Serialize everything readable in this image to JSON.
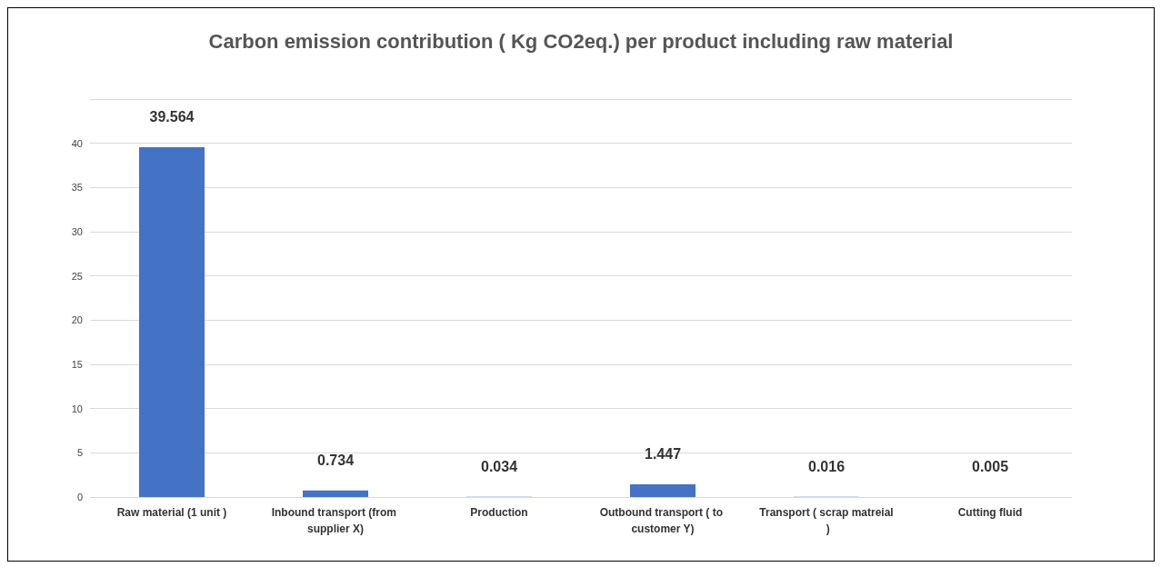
{
  "chart_data": {
    "type": "bar",
    "title": "Carbon emission contribution ( Kg CO2eq.) per product including raw material",
    "categories": [
      "Raw material (1 unit )",
      "Inbound transport (from supplier X)",
      "Production",
      "Outbound transport ( to customer Y)",
      "Transport ( scrap matreial )",
      "Cutting fluid"
    ],
    "values": [
      39.564,
      0.734,
      0.034,
      1.447,
      0.016,
      0.005
    ],
    "color": "#4472c4",
    "ylim": [
      0,
      45
    ],
    "yticks": [
      0,
      5,
      10,
      15,
      20,
      25,
      30,
      35,
      40,
      {
        "value": 45,
        "label": null
      }
    ],
    "grid": "y",
    "data_labels": true
  }
}
